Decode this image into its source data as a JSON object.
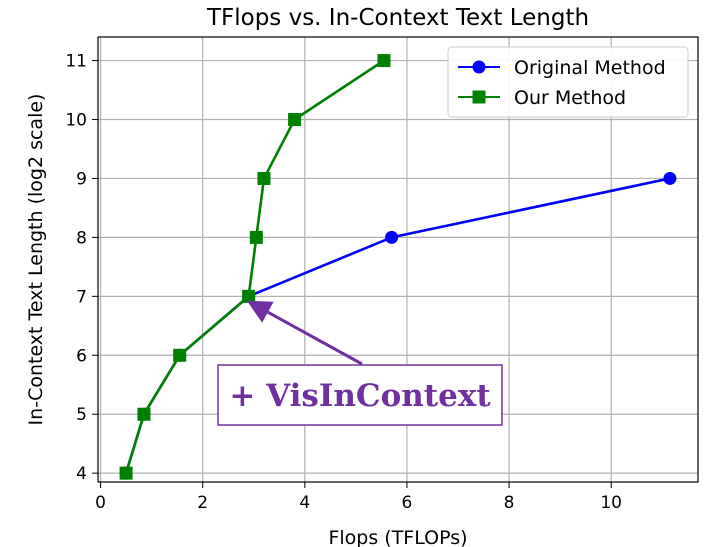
{
  "chart_data": {
    "type": "line",
    "title": "TFlops vs. In-Context Text Length",
    "xlabel": "Flops (TFLOPs)",
    "ylabel": "In-Context Text Length (log2 scale)",
    "xlim": [
      -0.05,
      11.7
    ],
    "ylim": [
      3.85,
      11.4
    ],
    "xticks": [
      0,
      2,
      4,
      6,
      8,
      10
    ],
    "yticks": [
      4,
      5,
      6,
      7,
      8,
      9,
      10,
      11
    ],
    "grid": true,
    "legend_position": "top-right",
    "series": [
      {
        "name": "Original Method",
        "color": "#0000ff",
        "marker": "circle",
        "x": [
          0.5,
          0.85,
          1.55,
          2.9,
          5.7,
          11.15
        ],
        "y": [
          4,
          5,
          6,
          7,
          8,
          9
        ]
      },
      {
        "name": "Our Method",
        "color": "#008000",
        "marker": "square",
        "x": [
          0.5,
          0.85,
          1.55,
          2.9,
          3.05,
          3.2,
          3.8,
          5.55
        ],
        "y": [
          4,
          5,
          6,
          7,
          8,
          9,
          10,
          11
        ]
      }
    ],
    "annotation": {
      "text": "+ VisInContext",
      "color": "#7030a0",
      "target": [
        2.9,
        7
      ]
    }
  }
}
